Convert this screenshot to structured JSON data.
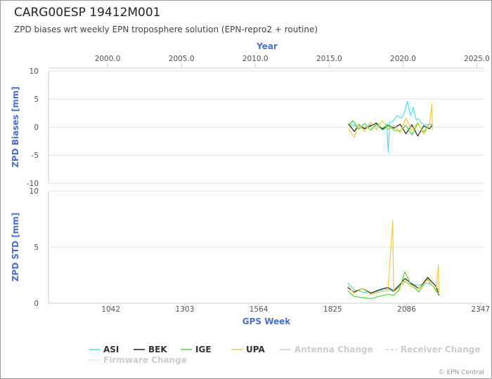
{
  "title": "CARG00ESP 19412M001",
  "subtitle": "ZPD biases wrt weekly EPN troposphere solution (EPN-repro2 + routine)",
  "credits": "© EPN Central",
  "colors": {
    "ASI": "#44e2ee",
    "BEK": "#222222",
    "IGE": "#4cdc2c",
    "UPA": "#f2c936",
    "disabled": "#cccccc",
    "axis_title": "#4a6fd8"
  },
  "chart_data": [
    {
      "type": "line",
      "title": "",
      "xlabel": "Year",
      "ylabel": "ZPD Biases [mm]",
      "x_axis_position": "top",
      "x_ticks": [
        "2000.0",
        "2005.0",
        "2010.0",
        "2015.0",
        "2020.0",
        "2025.0"
      ],
      "xlim": [
        1996.0,
        2025.5
      ],
      "y_ticks": [
        "10",
        "5",
        "0",
        "-5",
        "-10"
      ],
      "ylim": [
        -10,
        10
      ],
      "grid": "horizontal",
      "series": [
        {
          "name": "ASI",
          "x": [
            2016.3,
            2016.8,
            2017.3,
            2017.8,
            2018.3,
            2018.7,
            2018.9,
            2019.0,
            2019.1,
            2019.3,
            2019.6,
            2019.9,
            2020.1,
            2020.3,
            2020.5,
            2020.7,
            2020.9,
            2021.0,
            2021.3,
            2021.6,
            2021.9,
            2022.0
          ],
          "y": [
            0.5,
            0.2,
            -0.3,
            0.4,
            0.1,
            -0.5,
            0.6,
            -4.5,
            0.8,
            1.0,
            2.0,
            1.6,
            2.6,
            4.6,
            2.1,
            3.5,
            1.2,
            1.5,
            0.6,
            0.3,
            0.5,
            0.4
          ]
        },
        {
          "name": "BEK",
          "x": [
            2016.3,
            2016.7,
            2017.0,
            2017.4,
            2017.8,
            2018.2,
            2018.6,
            2019.0,
            2019.4,
            2019.8,
            2020.2,
            2020.6,
            2021.0,
            2021.4,
            2021.8,
            2022.0
          ],
          "y": [
            0.6,
            -0.8,
            0.4,
            -0.3,
            0.2,
            0.7,
            -0.4,
            0.3,
            -0.2,
            0.5,
            -1.2,
            0.4,
            -1.6,
            0.2,
            -0.3,
            0.4
          ]
        },
        {
          "name": "IGE",
          "x": [
            2016.3,
            2016.6,
            2017.0,
            2017.4,
            2017.8,
            2018.2,
            2018.6,
            2019.0,
            2019.4,
            2019.8,
            2020.2,
            2020.6,
            2021.0,
            2021.4,
            2021.8,
            2022.0
          ],
          "y": [
            0.2,
            1.1,
            -0.4,
            0.7,
            -0.6,
            0.5,
            -0.2,
            0.4,
            -0.6,
            -0.7,
            0.3,
            -1.4,
            0.6,
            -0.9,
            0.5,
            0.3
          ]
        },
        {
          "name": "UPA",
          "x": [
            2016.3,
            2016.7,
            2017.0,
            2017.4,
            2017.8,
            2018.2,
            2018.6,
            2019.0,
            2019.4,
            2019.8,
            2020.2,
            2020.6,
            2021.0,
            2021.4,
            2021.8,
            2021.95,
            2022.0
          ],
          "y": [
            -0.3,
            -1.8,
            0.6,
            -0.8,
            0.9,
            -0.5,
            1.2,
            -0.4,
            0.3,
            -1.0,
            1.6,
            -0.6,
            0.8,
            -1.3,
            0.6,
            4.0,
            -0.5
          ]
        }
      ]
    },
    {
      "type": "line",
      "title": "",
      "xlabel": "GPS Week",
      "ylabel": "ZPD STD [mm]",
      "x_axis_position": "bottom",
      "x_ticks": [
        "1042",
        "1303",
        "1564",
        "1825",
        "2086",
        "2347"
      ],
      "xlim": [
        822,
        2360
      ],
      "y_ticks": [
        "10",
        "5",
        "0"
      ],
      "ylim": [
        0,
        10
      ],
      "grid": "horizontal",
      "series": [
        {
          "name": "ASI",
          "x": [
            1878,
            1900,
            1930,
            1960,
            1990,
            2020,
            2040,
            2060,
            2080,
            2100,
            2130,
            2160,
            2190,
            2200
          ],
          "y": [
            1.8,
            1.2,
            1.0,
            0.9,
            1.1,
            1.3,
            1.0,
            1.5,
            1.9,
            1.7,
            1.6,
            1.8,
            1.4,
            1.2
          ]
        },
        {
          "name": "BEK",
          "x": [
            1878,
            1900,
            1930,
            1960,
            1990,
            2020,
            2040,
            2060,
            2080,
            2100,
            2130,
            2160,
            2190,
            2200
          ],
          "y": [
            1.4,
            1.0,
            1.3,
            0.9,
            1.2,
            1.4,
            1.1,
            1.6,
            2.2,
            1.8,
            1.3,
            2.3,
            1.5,
            0.7
          ]
        },
        {
          "name": "IGE",
          "x": [
            1878,
            1900,
            1930,
            1960,
            1990,
            2020,
            2040,
            2060,
            2080,
            2100,
            2130,
            2160,
            2190,
            2200
          ],
          "y": [
            1.1,
            0.6,
            0.5,
            0.4,
            0.6,
            0.8,
            0.7,
            1.2,
            2.8,
            1.7,
            1.0,
            2.2,
            1.1,
            0.8
          ]
        },
        {
          "name": "UPA",
          "x": [
            1878,
            1900,
            1930,
            1960,
            1990,
            2020,
            2037,
            2040,
            2060,
            2080,
            2100,
            2130,
            2160,
            2190,
            2198,
            2200
          ],
          "y": [
            1.6,
            0.9,
            1.3,
            0.8,
            1.0,
            1.1,
            7.3,
            1.0,
            1.4,
            2.0,
            1.5,
            1.3,
            2.1,
            1.2,
            3.4,
            0.9
          ]
        }
      ]
    }
  ],
  "legend": {
    "position": "bottom",
    "items": [
      {
        "label": "ASI",
        "style": "solid",
        "color_key": "ASI",
        "enabled": true
      },
      {
        "label": "BEK",
        "style": "solid",
        "color_key": "BEK",
        "enabled": true
      },
      {
        "label": "IGE",
        "style": "solid",
        "color_key": "IGE",
        "enabled": true
      },
      {
        "label": "UPA",
        "style": "solid",
        "color_key": "UPA",
        "enabled": true
      },
      {
        "label": "Antenna Change",
        "style": "solid",
        "color_key": "disabled",
        "enabled": false
      },
      {
        "label": "Receiver Change",
        "style": "dashed",
        "color_key": "disabled",
        "enabled": false
      },
      {
        "label": "Firmware Change",
        "style": "dotted",
        "color_key": "disabled",
        "enabled": false
      }
    ]
  }
}
